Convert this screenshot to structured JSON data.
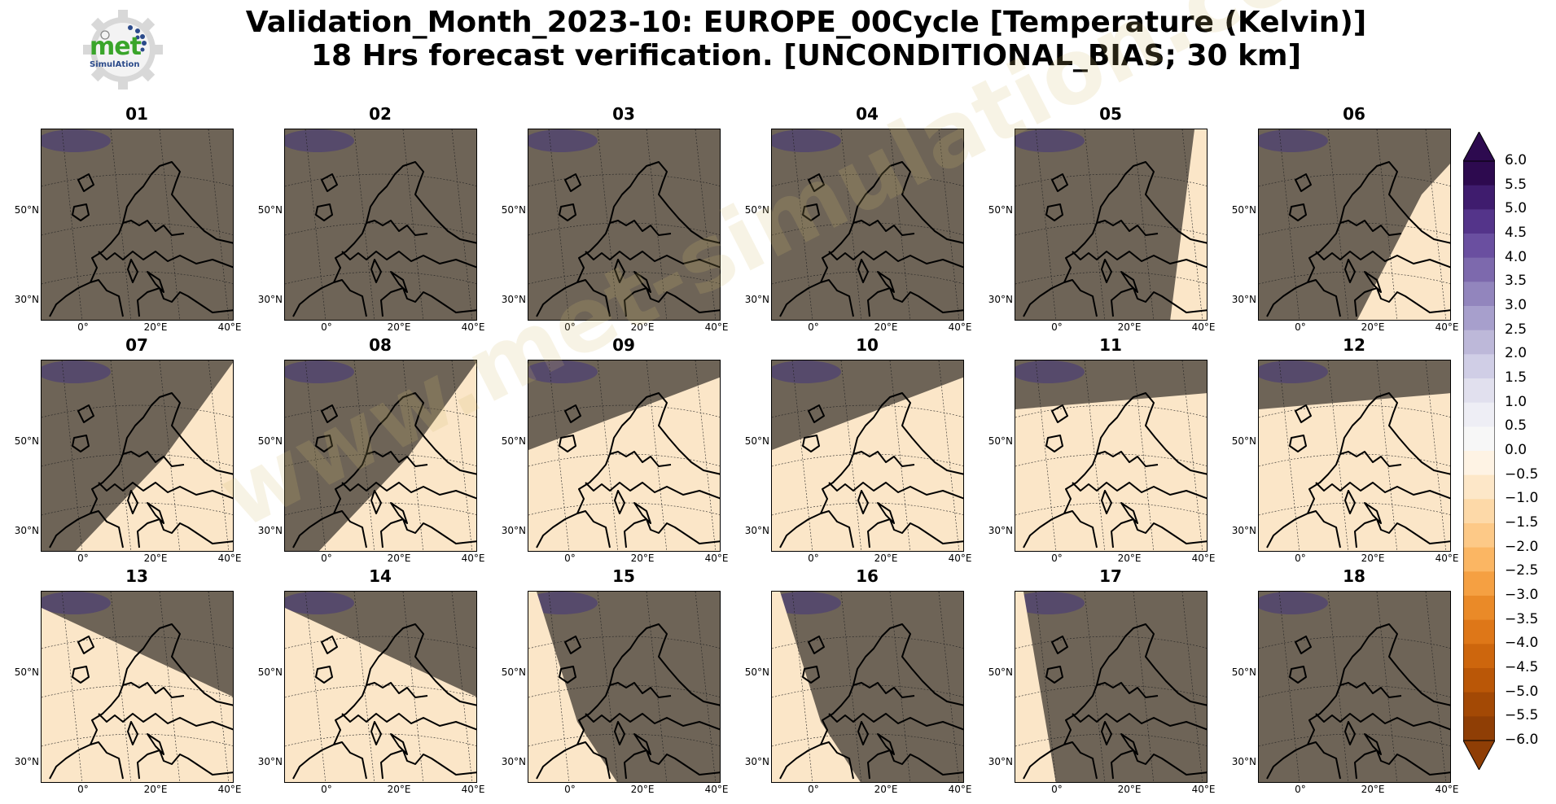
{
  "header": {
    "title_line1": "Validation_Month_2023-10: EUROPE_00Cycle [Temperature (Kelvin)]",
    "title_line2": "18 Hrs forecast verification. [UNCONDITIONAL_BIAS; 30 km]"
  },
  "logo": {
    "word": "met",
    "sub": "SimulAtion"
  },
  "watermark": "www.met-simulation.com",
  "axes": {
    "lat_labels": [
      "50°N",
      "30°N"
    ],
    "lon_labels": [
      "0°",
      "20°E",
      "40°E"
    ]
  },
  "panels": [
    {
      "label": "01",
      "daylit_boundary": null
    },
    {
      "label": "02",
      "daylit_boundary": null
    },
    {
      "label": "03",
      "daylit_boundary": null
    },
    {
      "label": "04",
      "daylit_boundary": null
    },
    {
      "label": "05",
      "daylit_boundary": "east edge"
    },
    {
      "label": "06",
      "daylit_boundary": "east"
    },
    {
      "label": "07",
      "daylit_boundary": "south-east"
    },
    {
      "label": "08",
      "daylit_boundary": "south-east"
    },
    {
      "label": "09",
      "daylit_boundary": "south"
    },
    {
      "label": "10",
      "daylit_boundary": "south"
    },
    {
      "label": "11",
      "daylit_boundary": "most"
    },
    {
      "label": "12",
      "daylit_boundary": "most"
    },
    {
      "label": "13",
      "daylit_boundary": "south-west"
    },
    {
      "label": "14",
      "daylit_boundary": "south-west"
    },
    {
      "label": "15",
      "daylit_boundary": "west"
    },
    {
      "label": "16",
      "daylit_boundary": "west"
    },
    {
      "label": "17",
      "daylit_boundary": "west edge"
    },
    {
      "label": "18",
      "daylit_boundary": null
    }
  ],
  "colorbar": {
    "labels": [
      "6.0",
      "5.5",
      "5.0",
      "4.5",
      "4.0",
      "3.5",
      "3.0",
      "2.5",
      "2.0",
      "1.5",
      "1.0",
      "0.5",
      "0.0",
      "−0.5",
      "−1.0",
      "−1.5",
      "−2.0",
      "−2.5",
      "−3.0",
      "−3.5",
      "−4.0",
      "−4.5",
      "−5.0",
      "−5.5",
      "−6.0"
    ],
    "colors_top_to_bottom": [
      "#2d0a4f",
      "#3f1c6e",
      "#54348a",
      "#6a4fa0",
      "#7d69ad",
      "#9285bd",
      "#a79fcc",
      "#bdb8d9",
      "#d0cee6",
      "#e1e0ee",
      "#eeeef5",
      "#f7f7f7",
      "#fef3e4",
      "#fde7c8",
      "#fdd9a8",
      "#fdc987",
      "#fbb663",
      "#f5a042",
      "#ea8a28",
      "#de7718",
      "#cd660d",
      "#ba5707",
      "#a34905",
      "#8f3e05"
    ]
  }
}
